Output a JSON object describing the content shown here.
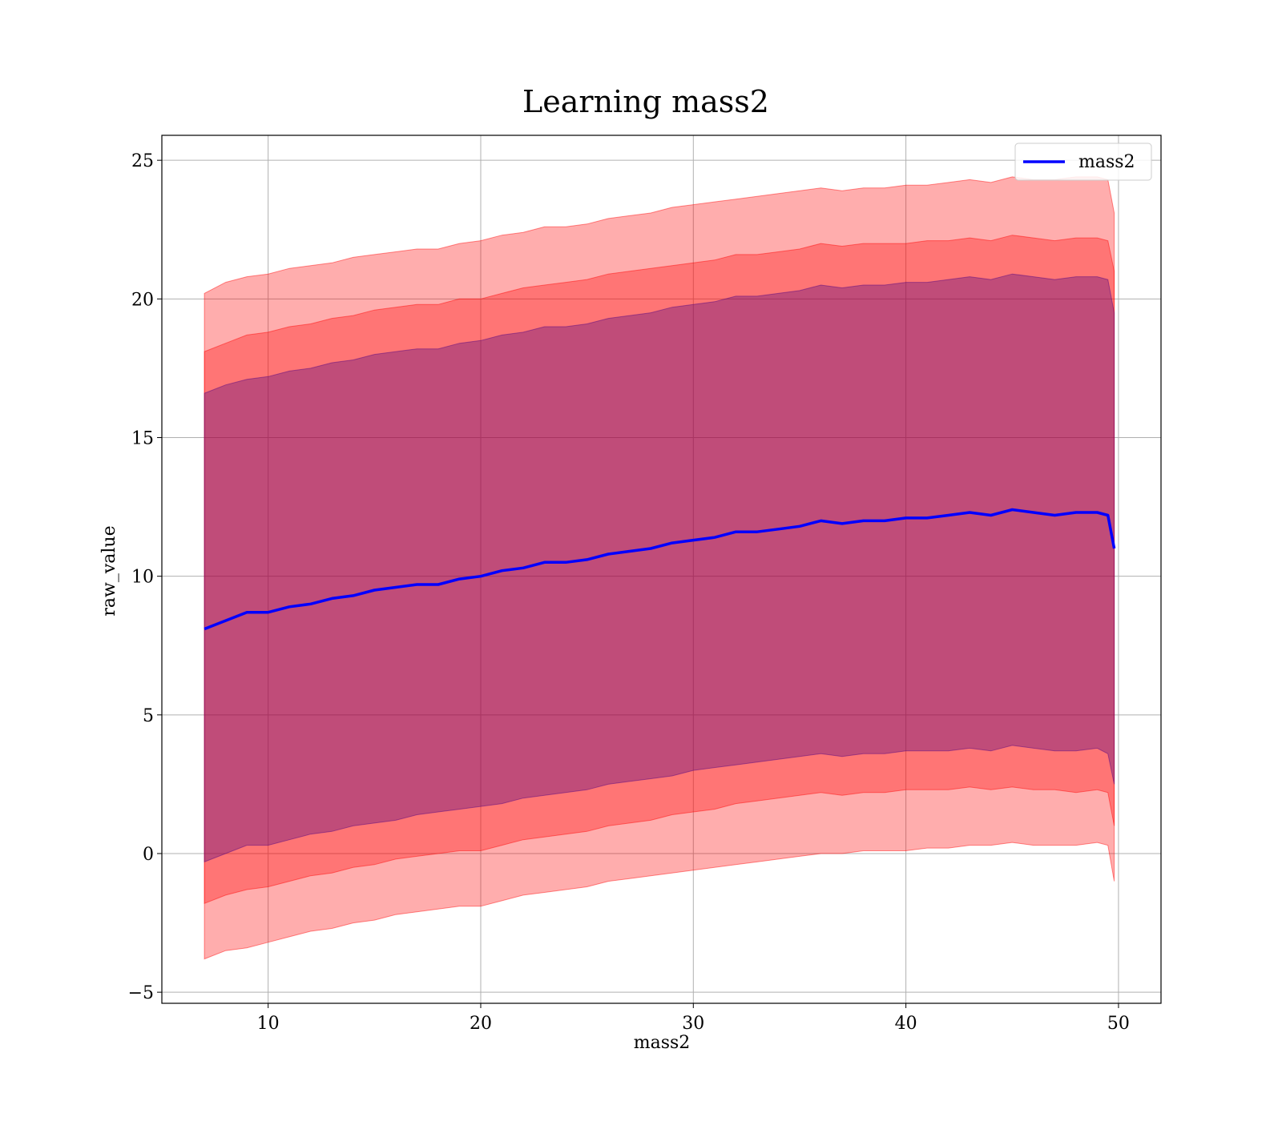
{
  "chart_data": {
    "type": "line",
    "title": "Learning mass2",
    "xlabel": "mass2",
    "ylabel": "raw_value",
    "xlim": [
      5,
      52
    ],
    "ylim": [
      -5.4,
      25.9
    ],
    "xticks": [
      10,
      20,
      30,
      40,
      50
    ],
    "yticks": [
      -5,
      0,
      5,
      10,
      15,
      20,
      25
    ],
    "xtick_labels": [
      "10",
      "20",
      "30",
      "40",
      "50"
    ],
    "ytick_labels": [
      "−5",
      "0",
      "5",
      "10",
      "15",
      "20",
      "25"
    ],
    "grid": true,
    "legend": {
      "position": "top-right",
      "entries": [
        "mass2"
      ]
    },
    "x": [
      7.0,
      8.0,
      9.0,
      10.0,
      11.0,
      12.0,
      13.0,
      14.0,
      15.0,
      16.0,
      17.0,
      18.0,
      19.0,
      20.0,
      21.0,
      22.0,
      23.0,
      24.0,
      25.0,
      26.0,
      27.0,
      28.0,
      29.0,
      30.0,
      31.0,
      32.0,
      33.0,
      34.0,
      35.0,
      36.0,
      37.0,
      38.0,
      39.0,
      40.0,
      41.0,
      42.0,
      43.0,
      44.0,
      45.0,
      46.0,
      47.0,
      48.0,
      49.0,
      49.5,
      49.8
    ],
    "series": [
      {
        "name": "mass2",
        "color": "#0000ff",
        "values": [
          8.1,
          8.4,
          8.7,
          8.7,
          8.9,
          9.0,
          9.2,
          9.3,
          9.5,
          9.6,
          9.7,
          9.7,
          9.9,
          10.0,
          10.2,
          10.3,
          10.5,
          10.5,
          10.6,
          10.8,
          10.9,
          11.0,
          11.2,
          11.3,
          11.4,
          11.6,
          11.6,
          11.7,
          11.8,
          12.0,
          11.9,
          12.0,
          12.0,
          12.1,
          12.1,
          12.2,
          12.3,
          12.2,
          12.4,
          12.3,
          12.2,
          12.3,
          12.3,
          12.2,
          11.0
        ]
      }
    ],
    "bands": [
      {
        "name": "outer",
        "color": "#ff0000",
        "opacity": 0.32,
        "lower": [
          -3.8,
          -3.5,
          -3.4,
          -3.2,
          -3.0,
          -2.8,
          -2.7,
          -2.5,
          -2.4,
          -2.2,
          -2.1,
          -2.0,
          -1.9,
          -1.9,
          -1.7,
          -1.5,
          -1.4,
          -1.3,
          -1.2,
          -1.0,
          -0.9,
          -0.8,
          -0.7,
          -0.6,
          -0.5,
          -0.4,
          -0.3,
          -0.2,
          -0.1,
          0.0,
          0.0,
          0.1,
          0.1,
          0.1,
          0.2,
          0.2,
          0.3,
          0.3,
          0.4,
          0.3,
          0.3,
          0.3,
          0.4,
          0.3,
          -1.0
        ],
        "upper": [
          20.2,
          20.6,
          20.8,
          20.9,
          21.1,
          21.2,
          21.3,
          21.5,
          21.6,
          21.7,
          21.8,
          21.8,
          22.0,
          22.1,
          22.3,
          22.4,
          22.6,
          22.6,
          22.7,
          22.9,
          23.0,
          23.1,
          23.3,
          23.4,
          23.5,
          23.6,
          23.7,
          23.8,
          23.9,
          24.0,
          23.9,
          24.0,
          24.0,
          24.1,
          24.1,
          24.2,
          24.3,
          24.2,
          24.4,
          24.3,
          24.3,
          24.4,
          24.4,
          24.3,
          23.1
        ]
      },
      {
        "name": "middle",
        "color": "#ff0000",
        "opacity": 0.32,
        "lower": [
          -1.8,
          -1.5,
          -1.3,
          -1.2,
          -1.0,
          -0.8,
          -0.7,
          -0.5,
          -0.4,
          -0.2,
          -0.1,
          0.0,
          0.1,
          0.1,
          0.3,
          0.5,
          0.6,
          0.7,
          0.8,
          1.0,
          1.1,
          1.2,
          1.4,
          1.5,
          1.6,
          1.8,
          1.9,
          2.0,
          2.1,
          2.2,
          2.1,
          2.2,
          2.2,
          2.3,
          2.3,
          2.3,
          2.4,
          2.3,
          2.4,
          2.3,
          2.3,
          2.2,
          2.3,
          2.2,
          1.0
        ],
        "upper": [
          18.1,
          18.4,
          18.7,
          18.8,
          19.0,
          19.1,
          19.3,
          19.4,
          19.6,
          19.7,
          19.8,
          19.8,
          20.0,
          20.0,
          20.2,
          20.4,
          20.5,
          20.6,
          20.7,
          20.9,
          21.0,
          21.1,
          21.2,
          21.3,
          21.4,
          21.6,
          21.6,
          21.7,
          21.8,
          22.0,
          21.9,
          22.0,
          22.0,
          22.0,
          22.1,
          22.1,
          22.2,
          22.1,
          22.3,
          22.2,
          22.1,
          22.2,
          22.2,
          22.1,
          21.0
        ]
      },
      {
        "name": "inner",
        "color": "#4b0082",
        "opacity": 0.35,
        "lower": [
          -0.3,
          0.0,
          0.3,
          0.3,
          0.5,
          0.7,
          0.8,
          1.0,
          1.1,
          1.2,
          1.4,
          1.5,
          1.6,
          1.7,
          1.8,
          2.0,
          2.1,
          2.2,
          2.3,
          2.5,
          2.6,
          2.7,
          2.8,
          3.0,
          3.1,
          3.2,
          3.3,
          3.4,
          3.5,
          3.6,
          3.5,
          3.6,
          3.6,
          3.7,
          3.7,
          3.7,
          3.8,
          3.7,
          3.9,
          3.8,
          3.7,
          3.7,
          3.8,
          3.6,
          2.5
        ],
        "upper": [
          16.6,
          16.9,
          17.1,
          17.2,
          17.4,
          17.5,
          17.7,
          17.8,
          18.0,
          18.1,
          18.2,
          18.2,
          18.4,
          18.5,
          18.7,
          18.8,
          19.0,
          19.0,
          19.1,
          19.3,
          19.4,
          19.5,
          19.7,
          19.8,
          19.9,
          20.1,
          20.1,
          20.2,
          20.3,
          20.5,
          20.4,
          20.5,
          20.5,
          20.6,
          20.6,
          20.7,
          20.8,
          20.7,
          20.9,
          20.8,
          20.7,
          20.8,
          20.8,
          20.7,
          19.5
        ]
      }
    ]
  }
}
